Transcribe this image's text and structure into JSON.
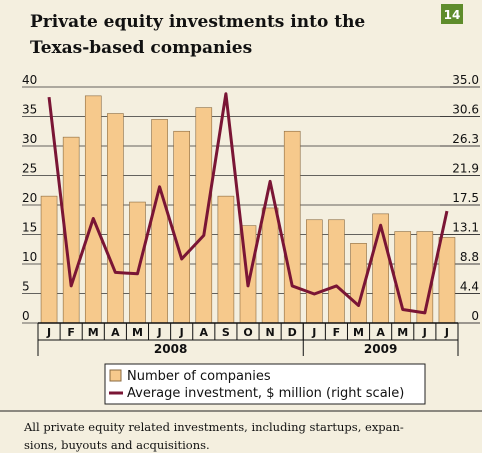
{
  "chart_data": {
    "type": "bar_line",
    "title_lines": [
      "Private equity investments into the",
      "Texas-based companies"
    ],
    "badge": "14",
    "categories": [
      "J",
      "F",
      "M",
      "A",
      "M",
      "J",
      "J",
      "A",
      "S",
      "O",
      "N",
      "D",
      "J",
      "F",
      "M",
      "A",
      "M",
      "J",
      "J"
    ],
    "groups": [
      {
        "name": "2008",
        "count": 12
      },
      {
        "name": "2009",
        "count": 7
      }
    ],
    "series": [
      {
        "name": "Number of companies",
        "color": "#f6c98c",
        "type": "bar",
        "values": [
          21.5,
          31.5,
          38.5,
          35.5,
          20.5,
          34.5,
          32.5,
          36.5,
          21.5,
          16.5,
          19.5,
          32.5,
          17.5,
          17.5,
          13.5,
          18.5,
          15.5,
          15.5,
          14.5
        ]
      },
      {
        "name": "Average investment, $ million (right scale)",
        "color": "#7a1535",
        "type": "line",
        "axis": "y2",
        "values": [
          33.5,
          5.5,
          15.5,
          7.5,
          7.3,
          20.2,
          9.5,
          13,
          34,
          5.5,
          21,
          5.5,
          4.3,
          5.5,
          2.6,
          14.5,
          2,
          1.5,
          16.6
        ]
      }
    ],
    "ylim": [
      0,
      40
    ],
    "yticks": [
      0,
      5,
      10,
      15,
      20,
      25,
      30,
      35,
      40
    ],
    "y2lim": [
      0,
      35
    ],
    "y2ticks": [
      0,
      {
        "value": 4.375,
        "label": "4.4"
      },
      {
        "value": 8.75,
        "label": "8.8"
      },
      {
        "value": 13.125,
        "label": "13.1"
      },
      17.5,
      {
        "value": 21.875,
        "label": "21.9"
      },
      {
        "value": 26.25,
        "label": "26.3"
      },
      {
        "value": 30.625,
        "label": "30.6"
      },
      {
        "value": 35,
        "label": "35.0"
      }
    ],
    "grid": true,
    "footnote_lines": [
      "All private equity related investments, including startups, expan-",
      "sions, buyouts and acquisitions."
    ]
  }
}
